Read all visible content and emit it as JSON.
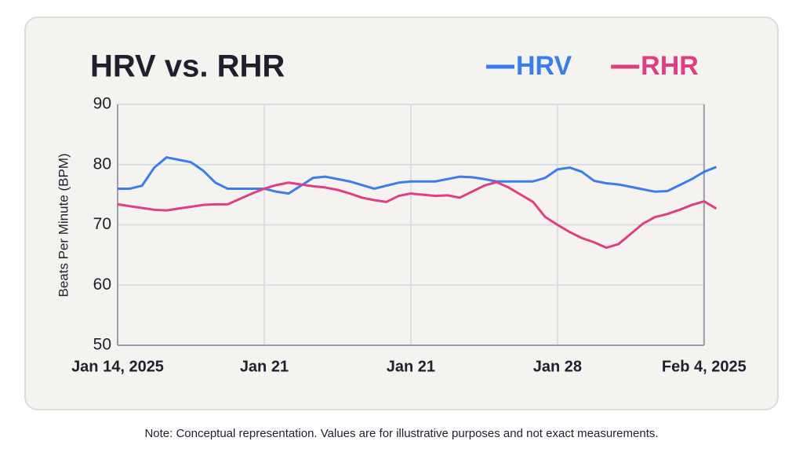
{
  "chart_data": {
    "type": "line",
    "title": "HRV vs. RHR",
    "y_label": "Beats Per Minute (BPM)",
    "note": "Note: Conceptual representation. Values are for illustrative purposes and not exact measurements.",
    "categories": [
      "Jan 14, 2025",
      null,
      null,
      null,
      null,
      null,
      null,
      null,
      null,
      null,
      null,
      null,
      "Jan 21",
      null,
      null,
      null,
      null,
      null,
      null,
      null,
      null,
      null,
      null,
      null,
      "Jan 21",
      null,
      null,
      null,
      null,
      null,
      null,
      null,
      null,
      null,
      null,
      null,
      "Jan 28",
      null,
      null,
      null,
      null,
      null,
      null,
      null,
      null,
      null,
      null,
      null,
      "Feb 4, 2025",
      null
    ],
    "series": [
      {
        "name": "HRV",
        "color": "#3b7ded",
        "values": [
          76,
          76,
          76.5,
          79.5,
          81.2,
          80.8,
          80.4,
          79,
          77,
          76,
          76,
          76,
          76,
          75.5,
          75.2,
          76.5,
          77.8,
          78,
          77.6,
          77.2,
          76.6,
          76,
          76.5,
          77,
          77.2,
          77.2,
          77.2,
          77.6,
          78,
          77.9,
          77.6,
          77.2,
          77.2,
          77.2,
          77.2,
          77.8,
          79.2,
          79.5,
          78.8,
          77.3,
          76.9,
          76.7,
          76.3,
          75.9,
          75.5,
          75.6,
          76.6,
          77.6,
          78.8,
          79.6
        ]
      },
      {
        "name": "RHR",
        "color": "#e03e82",
        "values": [
          73.4,
          73.1,
          72.8,
          72.5,
          72.4,
          72.7,
          73,
          73.3,
          73.4,
          73.4,
          74.3,
          75.2,
          76,
          76.6,
          77,
          76.7,
          76.4,
          76.2,
          75.8,
          75.2,
          74.5,
          74.1,
          73.8,
          74.8,
          75.2,
          75,
          74.8,
          74.9,
          74.5,
          75.5,
          76.5,
          77.1,
          76.2,
          75,
          73.8,
          71.3,
          70,
          68.8,
          67.8,
          67.1,
          66.2,
          66.8,
          68.5,
          70.2,
          71.3,
          71.8,
          72.5,
          73.3,
          73.9,
          72.7
        ]
      }
    ],
    "ylim": [
      50,
      90
    ],
    "yticks": [
      50,
      60,
      70,
      80,
      90
    ],
    "grid": true,
    "legend": "top-right"
  }
}
